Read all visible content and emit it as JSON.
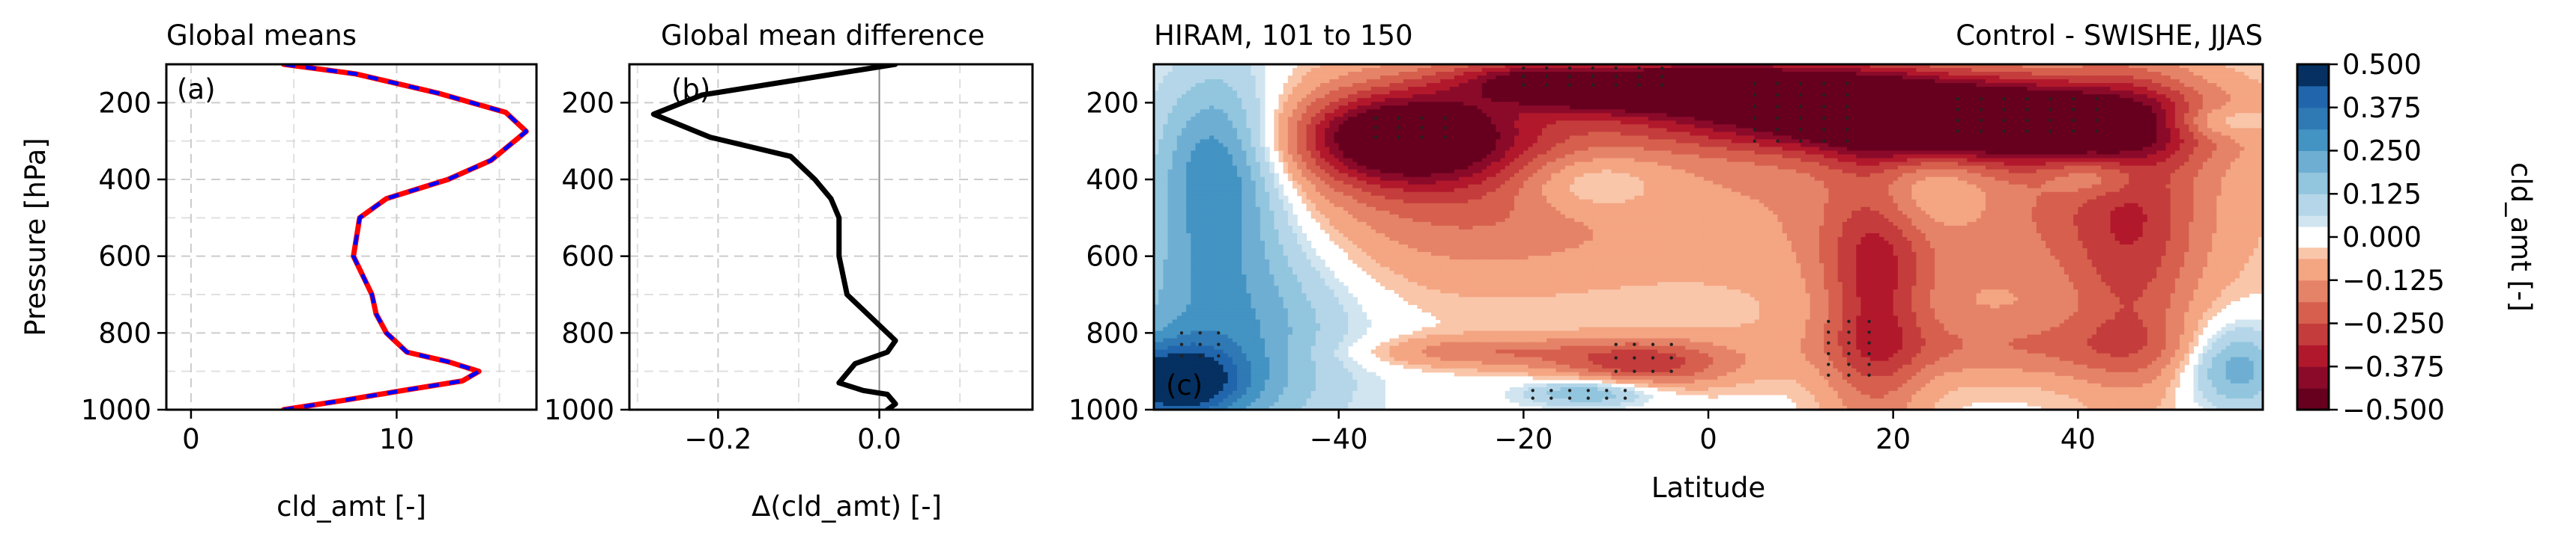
{
  "chart_data": [
    {
      "panel": "(a)",
      "type": "line",
      "title": "Global means",
      "xlabel": "cld_amt [-]",
      "ylabel": "Pressure [hPa]",
      "xlim": [
        -1.2,
        16.8
      ],
      "ylim": [
        1000,
        100
      ],
      "y_inverted": true,
      "grid": true,
      "xticks": [
        0,
        10
      ],
      "yticks": [
        200,
        400,
        600,
        800,
        1000
      ],
      "series": [
        {
          "color": "#ff0000",
          "style": "solid",
          "x": [
            4.5,
            7.5,
            10.3,
            13.2,
            14.0,
            12.5,
            10.5,
            9.5,
            9.0,
            8.8,
            7.9,
            8.2,
            9.5,
            12.5,
            14.6,
            16.3,
            15.3,
            12.0,
            8.0,
            4.5
          ],
          "y": [
            1000,
            975,
            950,
            925,
            900,
            875,
            850,
            800,
            750,
            700,
            600,
            500,
            450,
            400,
            350,
            275,
            225,
            175,
            125,
            100
          ]
        },
        {
          "color": "#0000ff",
          "style": "dashed",
          "x": [
            4.5,
            7.5,
            10.3,
            13.2,
            14.0,
            12.5,
            10.5,
            9.5,
            9.0,
            8.8,
            7.9,
            8.2,
            9.5,
            12.5,
            14.6,
            16.3,
            15.3,
            12.0,
            8.0,
            4.5
          ],
          "y": [
            1000,
            975,
            950,
            925,
            900,
            875,
            850,
            800,
            750,
            700,
            600,
            500,
            450,
            400,
            350,
            275,
            225,
            175,
            125,
            100
          ]
        }
      ]
    },
    {
      "panel": "(b)",
      "type": "line",
      "title": "Global mean difference",
      "xlabel": "Δ(cld_amt) [-]",
      "xlim": [
        -0.31,
        0.19
      ],
      "ylim": [
        1000,
        100
      ],
      "y_inverted": true,
      "grid": true,
      "xticks": [
        "−0.2",
        "0.0"
      ],
      "xtick_values": [
        -0.2,
        0.0
      ],
      "yticks": [
        200,
        400,
        600,
        800,
        1000
      ],
      "zero_line": true,
      "series": [
        {
          "color": "#000000",
          "style": "solid",
          "x": [
            0.01,
            0.02,
            0.01,
            -0.02,
            -0.05,
            -0.03,
            0.01,
            0.02,
            0.0,
            -0.02,
            -0.04,
            -0.05,
            -0.05,
            -0.06,
            -0.08,
            -0.11,
            -0.21,
            -0.28,
            -0.22,
            -0.1,
            0.02
          ],
          "y": [
            1000,
            985,
            960,
            950,
            930,
            880,
            850,
            820,
            780,
            740,
            700,
            600,
            500,
            450,
            400,
            340,
            290,
            230,
            180,
            140,
            100
          ]
        }
      ]
    },
    {
      "panel": "(c)",
      "type": "heatmap",
      "title_left": "HIRAM, 101 to 150",
      "title_right": "Control - SWISHE, JJAS",
      "xlabel": "Latitude",
      "xlim": [
        -60,
        60
      ],
      "ylim": [
        1000,
        100
      ],
      "y_inverted": true,
      "xticks": [
        "−40",
        "−20",
        "0",
        "20",
        "40"
      ],
      "xtick_values": [
        -40,
        -20,
        0,
        20,
        40
      ],
      "yticks": [
        200,
        400,
        600,
        800,
        1000
      ],
      "colorbar_label": "cld_amt [-]",
      "colorbar_ticks": [
        "0.500",
        "0.375",
        "0.250",
        "0.125",
        "0.000",
        "−0.125",
        "−0.250",
        "−0.375",
        "−0.500"
      ],
      "colorbar_tick_values": [
        0.5,
        0.375,
        0.25,
        0.125,
        0.0,
        -0.125,
        -0.25,
        -0.375,
        -0.5
      ],
      "levels": [
        -0.5,
        -0.4375,
        -0.375,
        -0.3125,
        -0.25,
        -0.1875,
        -0.125,
        -0.0625,
        -0.03,
        0.03,
        0.0625,
        0.125,
        0.1875,
        0.25,
        0.3125,
        0.375,
        0.4375,
        0.5
      ],
      "level_colors": [
        "#67001f",
        "#8b0a2a",
        "#b2182b",
        "#c43c3c",
        "#d6604d",
        "#e58368",
        "#f4a582",
        "#f9c6aa",
        "#ffffff",
        "#d1e5f0",
        "#b4d6e8",
        "#92c5de",
        "#6eaed3",
        "#4393c3",
        "#2f79b5",
        "#2166ac",
        "#053061"
      ],
      "blobs": [
        {
          "lat": -12,
          "p": 140,
          "slat": 9,
          "sp": 45,
          "amp": -0.48
        },
        {
          "lat": 0,
          "p": 150,
          "slat": 13,
          "sp": 45,
          "amp": -0.34
        },
        {
          "lat": 10,
          "p": 220,
          "slat": 14,
          "sp": 70,
          "amp": -0.38
        },
        {
          "lat": 33,
          "p": 250,
          "slat": 13,
          "sp": 70,
          "amp": -0.52
        },
        {
          "lat": -33,
          "p": 290,
          "slat": 8,
          "sp": 80,
          "amp": -0.48
        },
        {
          "lat": -26,
          "p": 380,
          "slat": 16,
          "sp": 200,
          "amp": -0.24
        },
        {
          "lat": 30,
          "p": 420,
          "slat": 20,
          "sp": 260,
          "amp": -0.2
        },
        {
          "lat": 18,
          "p": 700,
          "slat": 4,
          "sp": 300,
          "amp": -0.24
        },
        {
          "lat": 46,
          "p": 540,
          "slat": 5,
          "sp": 320,
          "amp": -0.19
        },
        {
          "lat": -7,
          "p": 880,
          "slat": 7,
          "sp": 45,
          "amp": -0.27
        },
        {
          "lat": -25,
          "p": 850,
          "slat": 9,
          "sp": 30,
          "amp": -0.16
        },
        {
          "lat": 35,
          "p": 840,
          "slat": 18,
          "sp": 60,
          "amp": -0.13
        },
        {
          "lat": -10,
          "p": 110,
          "slat": 6,
          "sp": 20,
          "amp": 0.3
        },
        {
          "lat": -53,
          "p": 360,
          "slat": 5,
          "sp": 180,
          "amp": 0.32
        },
        {
          "lat": -52,
          "p": 800,
          "slat": 9,
          "sp": 230,
          "amp": 0.26
        },
        {
          "lat": -58,
          "p": 930,
          "slat": 5,
          "sp": 70,
          "amp": 0.42
        },
        {
          "lat": -13,
          "p": 410,
          "slat": 6,
          "sp": 60,
          "amp": 0.16
        },
        {
          "lat": 23,
          "p": 420,
          "slat": 6,
          "sp": 90,
          "amp": 0.18
        },
        {
          "lat": 42,
          "p": 390,
          "slat": 4,
          "sp": 40,
          "amp": 0.16
        },
        {
          "lat": -13,
          "p": 955,
          "slat": 5,
          "sp": 25,
          "amp": 0.22
        },
        {
          "lat": 57,
          "p": 880,
          "slat": 4,
          "sp": 80,
          "amp": 0.28
        },
        {
          "lat": 55,
          "p": 250,
          "slat": 4,
          "sp": 30,
          "amp": 0.14
        }
      ],
      "stipple_regions": [
        {
          "lat": [
            -20,
            -3
          ],
          "p": [
            110,
            170
          ],
          "step": [
            2.5,
            22
          ]
        },
        {
          "lat": [
            -36,
            -28
          ],
          "p": [
            240,
            310
          ],
          "step": [
            2.5,
            25
          ]
        },
        {
          "lat": [
            5,
            15
          ],
          "p": [
            150,
            320
          ],
          "step": [
            2.5,
            30
          ]
        },
        {
          "lat": [
            27,
            42
          ],
          "p": [
            190,
            300
          ],
          "step": [
            2.5,
            28
          ]
        },
        {
          "lat": [
            13,
            19
          ],
          "p": [
            770,
            930
          ],
          "step": [
            2.2,
            28
          ]
        },
        {
          "lat": [
            -10,
            -4
          ],
          "p": [
            830,
            920
          ],
          "step": [
            2.0,
            35
          ]
        },
        {
          "lat": [
            -57,
            -52
          ],
          "p": [
            800,
            860
          ],
          "step": [
            2.0,
            30
          ]
        },
        {
          "lat": [
            -19,
            -8
          ],
          "p": [
            950,
            975
          ],
          "step": [
            2.0,
            20
          ]
        }
      ]
    }
  ]
}
